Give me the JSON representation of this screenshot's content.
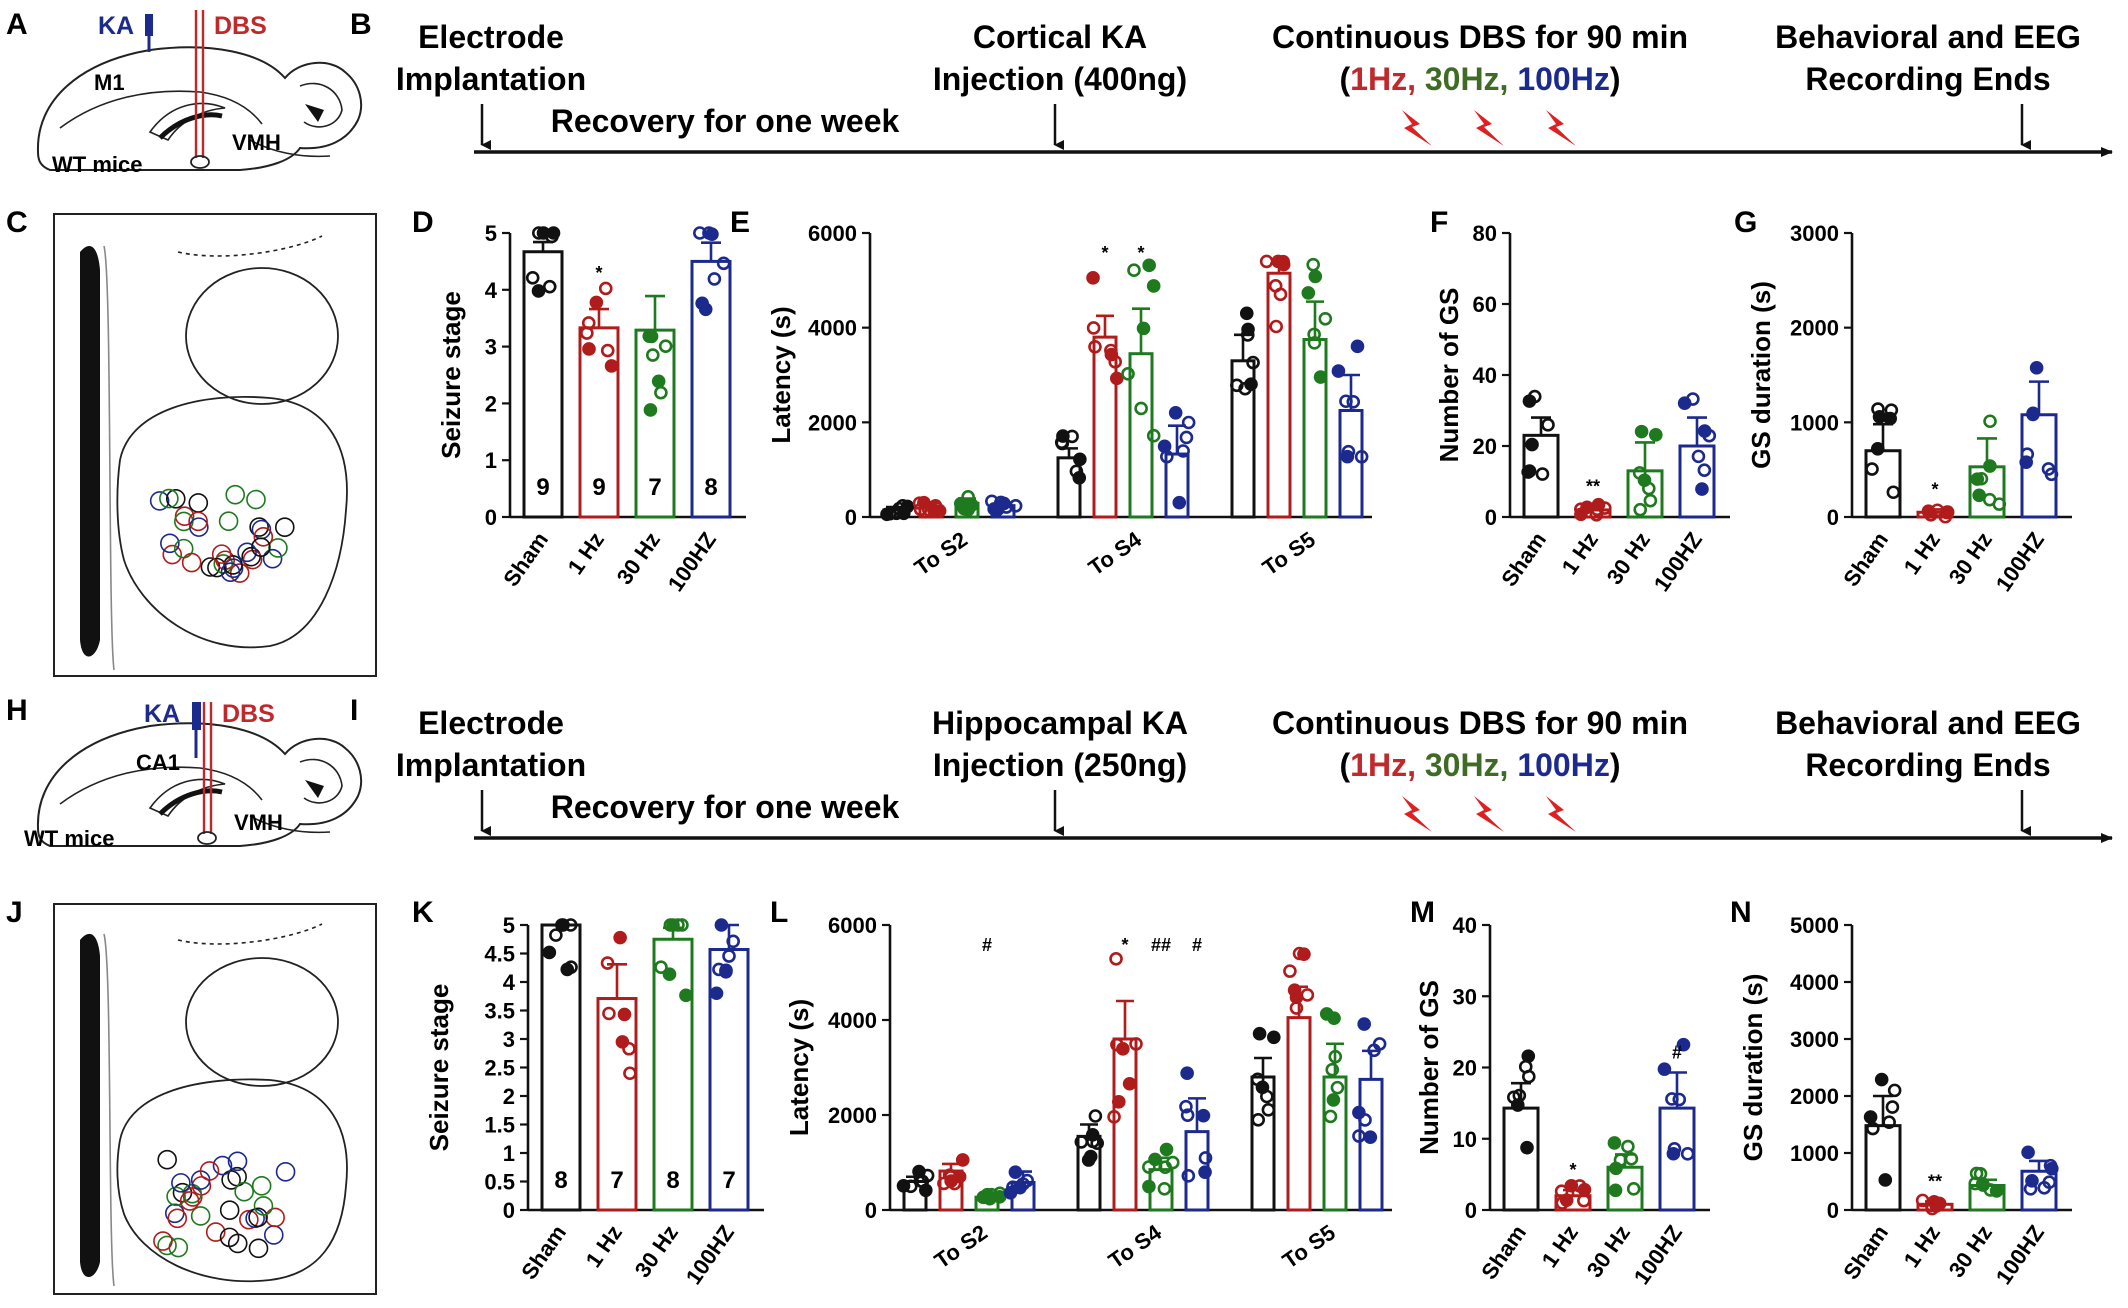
{
  "panel_letters": [
    "A",
    "B",
    "C",
    "D",
    "E",
    "F",
    "G",
    "H",
    "I",
    "J",
    "K",
    "L",
    "M",
    "N"
  ],
  "colors": {
    "sham": "#111111",
    "hz1": "#b01c1c",
    "hz30": "#1f7a1f",
    "hz100": "#1c2a8e",
    "ka_label": "#1c2a8e",
    "dbs_label": "#c0282c",
    "bolt": "#e02020"
  },
  "group_labels": [
    "Sham",
    "1 Hz",
    "30 Hz",
    "100HZ"
  ],
  "cortical": {
    "schematic": {
      "ka": "KA",
      "dbs": "DBS",
      "region": "M1",
      "target": "VMH",
      "mice": "WT mice"
    },
    "timeline": {
      "electrode": [
        "Electrode",
        "Implantation"
      ],
      "recovery": "Recovery for one week",
      "injection": [
        "Cortical KA",
        "Injection (400ng)"
      ],
      "dbs_title": "Continuous DBS for 90 min",
      "freq_open": "(",
      "freqs": [
        "1Hz,",
        "30Hz,",
        "100Hz"
      ],
      "freq_close": ")",
      "end": [
        "Behavioral and EEG",
        "Recording Ends"
      ]
    }
  },
  "hippocampal": {
    "schematic": {
      "ka": "KA",
      "dbs": "DBS",
      "region": "CA1",
      "target": "VMH",
      "mice": "WT mice"
    },
    "timeline": {
      "electrode": [
        "Electrode",
        "Implantation"
      ],
      "recovery": "Recovery for one week",
      "injection": [
        "Hippocampal KA",
        "Injection (250ng)"
      ],
      "dbs_title": "Continuous DBS for 90 min",
      "freq_open": "(",
      "freqs": [
        "1Hz,",
        "30Hz,",
        "100Hz"
      ],
      "freq_close": ")",
      "end": [
        "Behavioral and EEG",
        "Recording Ends"
      ]
    }
  },
  "chart_data": [
    {
      "panel": "D",
      "type": "bar",
      "ylabel": "Seizure stage",
      "ylim": [
        0,
        5
      ],
      "yticks": [
        0,
        1,
        2,
        3,
        4,
        5
      ],
      "categories": [
        "Sham",
        "1 Hz",
        "30 Hz",
        "100HZ"
      ],
      "values": [
        4.67,
        3.33,
        3.29,
        4.5
      ],
      "errors": [
        0.17,
        0.33,
        0.6,
        0.33
      ],
      "n_labels": [
        "9",
        "9",
        "7",
        "8"
      ],
      "sig": [
        "",
        "*",
        "",
        ""
      ]
    },
    {
      "panel": "E",
      "type": "bar",
      "ylabel": "Latency (s)",
      "ylim": [
        0,
        6000
      ],
      "yticks": [
        0,
        2000,
        4000,
        6000
      ],
      "categories": [
        "To S2",
        "To S4",
        "To S5"
      ],
      "series": [
        {
          "name": "Sham",
          "values": [
            150,
            1250,
            3300
          ],
          "errors": [
            60,
            200,
            550
          ]
        },
        {
          "name": "1 Hz",
          "values": [
            230,
            3800,
            5150
          ],
          "errors": [
            70,
            450,
            200
          ]
        },
        {
          "name": "30 Hz",
          "values": [
            290,
            3450,
            3750
          ],
          "errors": [
            100,
            950,
            800
          ]
        },
        {
          "name": "100HZ",
          "values": [
            240,
            1330,
            2250
          ],
          "errors": [
            60,
            600,
            750
          ]
        }
      ],
      "sig": [
        [
          "",
          "",
          "",
          ""
        ],
        [
          "",
          "*",
          "*",
          ""
        ],
        [
          "",
          "",
          "",
          ""
        ]
      ]
    },
    {
      "panel": "F",
      "type": "bar",
      "ylabel": "Number of GS",
      "ylim": [
        0,
        80
      ],
      "yticks": [
        0,
        20,
        40,
        60,
        80
      ],
      "categories": [
        "Sham",
        "1 Hz",
        "30 Hz",
        "100HZ"
      ],
      "values": [
        23,
        2,
        13,
        20
      ],
      "errors": [
        5,
        1,
        8,
        8
      ],
      "sig": [
        "",
        "**",
        "",
        ""
      ]
    },
    {
      "panel": "G",
      "type": "bar",
      "ylabel": "GS duration (s)",
      "ylim": [
        0,
        3000
      ],
      "yticks": [
        0,
        1000,
        2000,
        3000
      ],
      "categories": [
        "Sham",
        "1 Hz",
        "30 Hz",
        "100HZ"
      ],
      "values": [
        700,
        50,
        530,
        1080
      ],
      "errors": [
        280,
        30,
        300,
        350
      ],
      "sig": [
        "",
        "*",
        "",
        ""
      ]
    },
    {
      "panel": "K",
      "type": "bar",
      "ylabel": "Seizure stage",
      "ylim": [
        0,
        5
      ],
      "yticks": [
        0,
        0.5,
        1,
        1.5,
        2,
        2.5,
        3,
        3.5,
        4,
        4.5,
        5
      ],
      "categories": [
        "Sham",
        "1 Hz",
        "30 Hz",
        "100HZ"
      ],
      "values": [
        5,
        3.71,
        4.75,
        4.57
      ],
      "errors": [
        0,
        0.6,
        0.2,
        0.43
      ],
      "n_labels": [
        "8",
        "7",
        "8",
        "7"
      ],
      "sig": [
        "",
        "",
        "",
        ""
      ]
    },
    {
      "panel": "L",
      "type": "bar",
      "ylabel": "Latency (s)",
      "ylim": [
        0,
        6000
      ],
      "yticks": [
        0,
        2000,
        4000,
        6000
      ],
      "categories": [
        "To S2",
        "To S4",
        "To S5"
      ],
      "series": [
        {
          "name": "Sham",
          "values": [
            600,
            1550,
            2800
          ],
          "errors": [
            100,
            250,
            400
          ]
        },
        {
          "name": "1 Hz",
          "values": [
            820,
            3600,
            4050
          ],
          "errors": [
            150,
            800,
            650
          ]
        },
        {
          "name": "30 Hz",
          "values": [
            270,
            850,
            2800
          ],
          "errors": [
            40,
            250,
            700
          ]
        },
        {
          "name": "100HZ",
          "values": [
            580,
            1650,
            2750
          ],
          "errors": [
            230,
            700,
            600
          ]
        }
      ],
      "sig": [
        [
          "",
          "",
          "#",
          ""
        ],
        [
          "",
          "*",
          "##",
          "#"
        ],
        [
          "",
          "",
          "",
          ""
        ]
      ]
    },
    {
      "panel": "M",
      "type": "bar",
      "ylabel": "Number of GS",
      "ylim": [
        0,
        40
      ],
      "yticks": [
        0,
        10,
        20,
        30,
        40
      ],
      "categories": [
        "Sham",
        "1 Hz",
        "30 Hz",
        "100HZ"
      ],
      "values": [
        14.3,
        2,
        6,
        14.3
      ],
      "errors": [
        3.5,
        0.8,
        1.8,
        5
      ],
      "sig": [
        "",
        "*",
        "",
        "#"
      ]
    },
    {
      "panel": "N",
      "type": "bar",
      "ylabel": "GS duration (s)",
      "ylim": [
        0,
        5000
      ],
      "yticks": [
        0,
        1000,
        2000,
        3000,
        4000,
        5000
      ],
      "categories": [
        "Sham",
        "1 Hz",
        "30 Hz",
        "100HZ"
      ],
      "values": [
        1480,
        100,
        430,
        680
      ],
      "errors": [
        520,
        50,
        100,
        180
      ],
      "sig": [
        "",
        "**",
        "",
        ""
      ]
    }
  ]
}
